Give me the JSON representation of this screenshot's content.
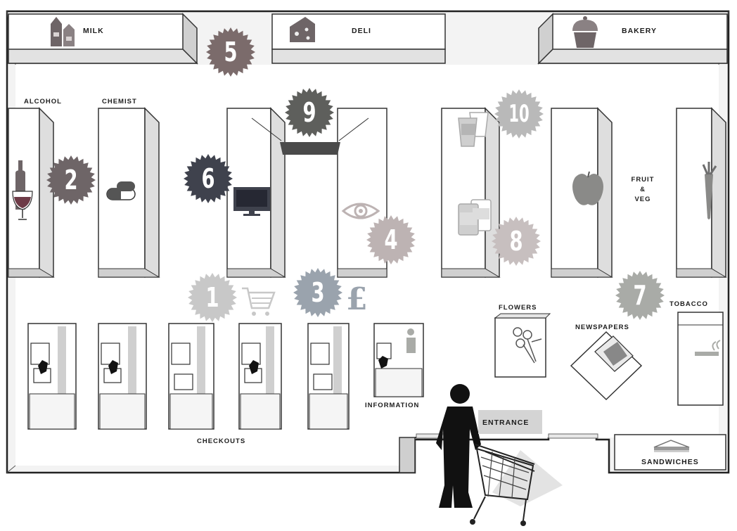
{
  "map": {
    "sections": {
      "milk": "MILK",
      "deli": "DELI",
      "bakery": "BAKERY",
      "alcohol": "ALCOHOL",
      "chemist": "CHEMIST",
      "fruit_veg_line1": "FRUIT",
      "fruit_veg_line2": "&",
      "fruit_veg_line3": "VEG",
      "flowers": "FLOWERS",
      "newspapers": "NEWSPAPERS",
      "tobacco": "TOBACCO",
      "information": "INFORMATION",
      "checkouts": "CHECKOUTS",
      "entrance": "ENTRANCE",
      "sandwiches": "SANDWICHES"
    },
    "markers": [
      {
        "id": "1",
        "color": "#c8c8c8"
      },
      {
        "id": "2",
        "color": "#6e6567"
      },
      {
        "id": "3",
        "color": "#9aa3ad"
      },
      {
        "id": "4",
        "color": "#bdb3b3"
      },
      {
        "id": "5",
        "color": "#7b6b6b"
      },
      {
        "id": "6",
        "color": "#3f424d"
      },
      {
        "id": "7",
        "color": "#a9aba7"
      },
      {
        "id": "8",
        "color": "#c7bfbf"
      },
      {
        "id": "9",
        "color": "#5e5f5c"
      },
      {
        "id": "10",
        "color": "#b9b9b9"
      }
    ],
    "icons": [
      "milk-cartons-icon",
      "cheese-icon",
      "cupcake-icon",
      "wine-bottle-icon",
      "pills-icon",
      "tv-icon",
      "eye-icon",
      "cups-icon",
      "cans-icon",
      "apple-icon",
      "carrot-icon",
      "cart-icon",
      "pound-sign-icon",
      "info-icon",
      "flowers-icon",
      "newspaper-icon",
      "cigarette-icon",
      "sandwich-icon",
      "shopper-icon"
    ]
  }
}
